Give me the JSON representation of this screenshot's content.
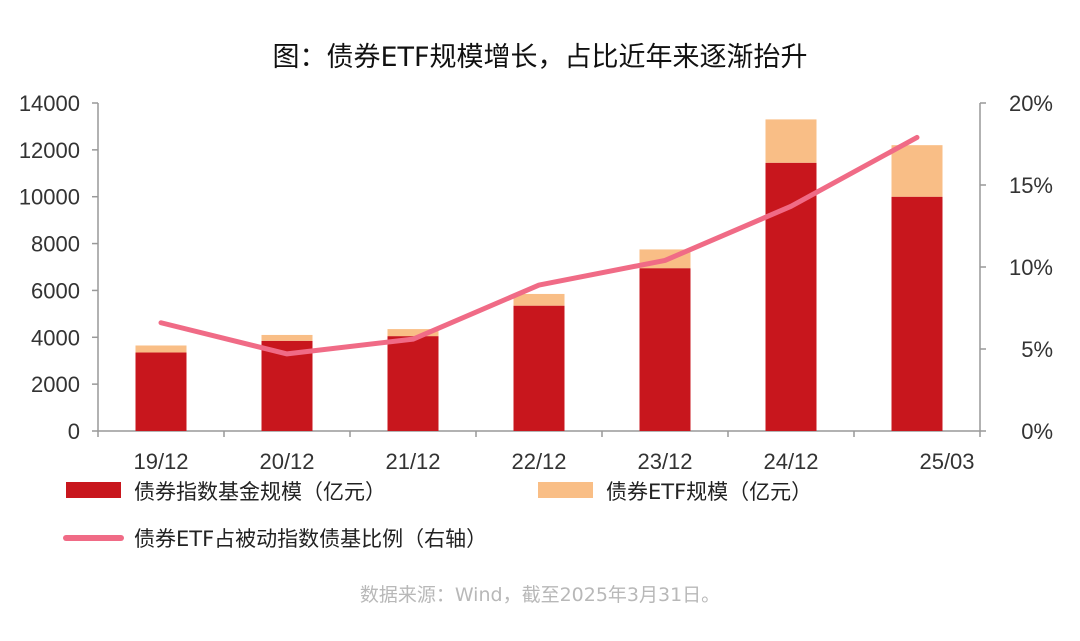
{
  "chart_data": {
    "type": "bar",
    "title": "图：债券ETF规模增长，占比近年来逐渐抬升",
    "categories": [
      "19/12",
      "20/12",
      "21/12",
      "22/12",
      "23/12",
      "24/12",
      "25/03"
    ],
    "stacked": true,
    "series": [
      {
        "name": "债券指数基金规模（亿元）",
        "type": "bar",
        "axis": "left",
        "color": "#c8161d",
        "values": [
          3350,
          3850,
          4050,
          5350,
          6950,
          11450,
          10000
        ]
      },
      {
        "name": "债券ETF规模（亿元）",
        "type": "bar",
        "axis": "left",
        "color": "#f9be86",
        "values": [
          300,
          250,
          300,
          500,
          800,
          1850,
          2200
        ]
      },
      {
        "name": "债券ETF占被动指数债基比例（右轴）",
        "type": "line",
        "axis": "right",
        "color": "#f06b86",
        "values": [
          6.6,
          4.7,
          5.6,
          8.9,
          10.4,
          13.7,
          17.9
        ]
      }
    ],
    "y_left": {
      "lim": [
        0,
        14000
      ],
      "ticks": [
        "0",
        "2000",
        "4000",
        "6000",
        "8000",
        "10000",
        "12000",
        "14000"
      ]
    },
    "y_right": {
      "lim": [
        0,
        20
      ],
      "ticks": [
        "0%",
        "5%",
        "10%",
        "15%",
        "20%"
      ]
    },
    "grid": false,
    "legend_placement": "bottom",
    "source_note": "数据来源：Wind，截至2025年3月31日。"
  }
}
